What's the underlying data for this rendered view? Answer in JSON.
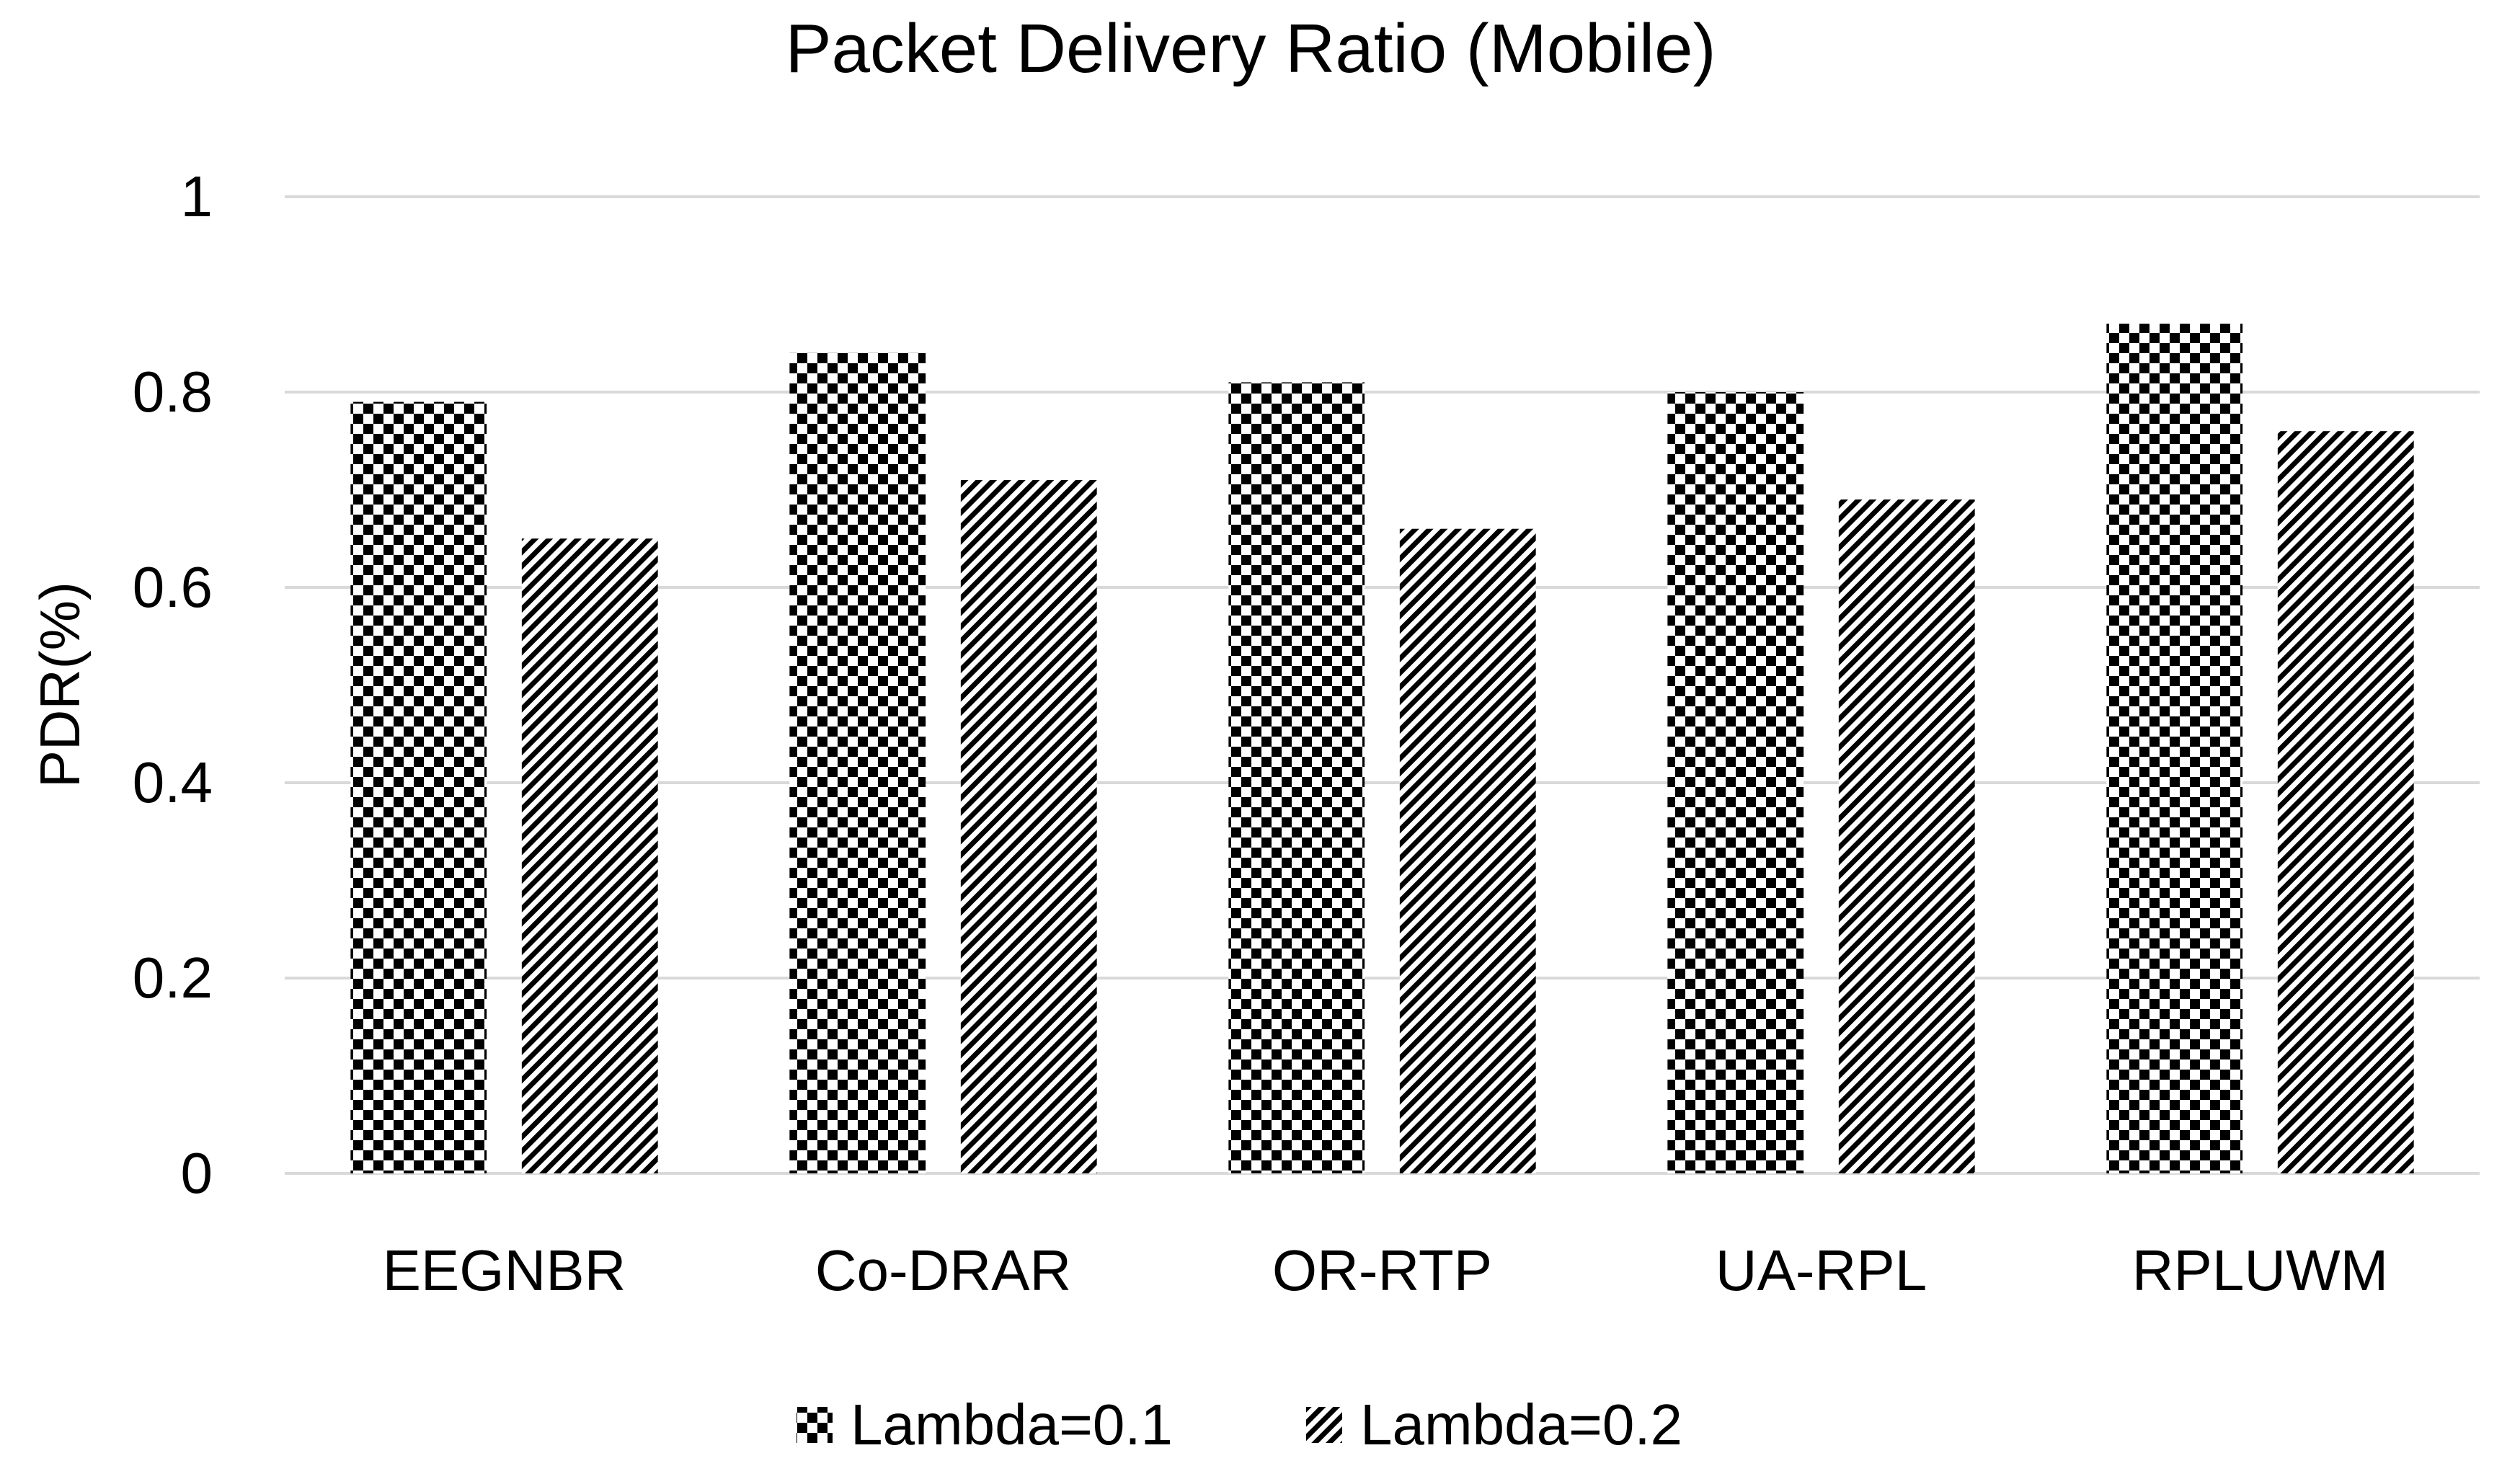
{
  "chart_data": {
    "type": "bar",
    "title": "Packet Delivery Ratio (Mobile)",
    "xlabel": "",
    "ylabel": "PDR(%)",
    "ylim": [
      0,
      1
    ],
    "yticks": [
      "0",
      "0.2",
      "0.4",
      "0.6",
      "0.8",
      "1"
    ],
    "grid": true,
    "legend_position": "bottom",
    "categories": [
      "EEGNBR",
      "Co-DRAR",
      "OR-RTP",
      "UA-RPL",
      "RPLUWM"
    ],
    "series": [
      {
        "name": "Lambda=0.1",
        "pattern": "checker",
        "values": [
          0.79,
          0.84,
          0.81,
          0.8,
          0.87
        ]
      },
      {
        "name": "Lambda=0.2",
        "pattern": "diagonal",
        "values": [
          0.65,
          0.71,
          0.66,
          0.69,
          0.76
        ]
      }
    ],
    "colors": {
      "bar_pattern": "#000000",
      "bar_fill": "#ffffff",
      "grid": "#d9d9d9",
      "text": "#000000"
    }
  }
}
